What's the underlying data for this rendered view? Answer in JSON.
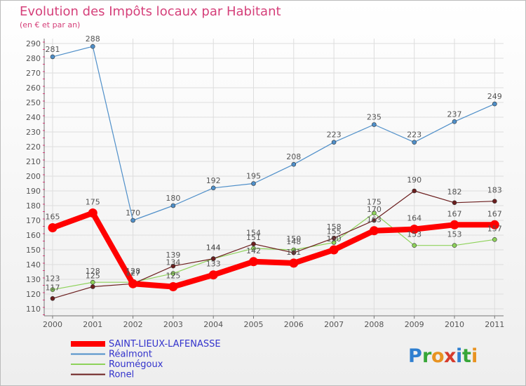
{
  "chart_data": {
    "type": "line",
    "title": "Evolution des Impôts locaux par Habitant",
    "subtitle": "(en € et par an)",
    "categories": [
      "2000",
      "2001",
      "2002",
      "2003",
      "2004",
      "2005",
      "2006",
      "2007",
      "2008",
      "2009",
      "2010",
      "2011"
    ],
    "ylim": [
      110,
      290
    ],
    "yticks": [
      110,
      120,
      130,
      140,
      150,
      160,
      170,
      180,
      190,
      200,
      210,
      220,
      230,
      240,
      250,
      260,
      270,
      280,
      290
    ],
    "grid": true,
    "legend_position": "bottom-left",
    "series": [
      {
        "name": "Réalmont",
        "color": "#4f8fc9",
        "values": [
          281,
          288,
          170,
          180,
          192,
          195,
          208,
          223,
          235,
          223,
          237,
          249
        ]
      },
      {
        "name": "Roumégoux",
        "color": "#8ed25a",
        "values": [
          123,
          128,
          128,
          134,
          144,
          151,
          150,
          155,
          175,
          153,
          153,
          157
        ]
      },
      {
        "name": "Ronel",
        "color": "#6b1e1e",
        "values": [
          117,
          125,
          127,
          139,
          144,
          154,
          148,
          158,
          170,
          190,
          182,
          183
        ]
      },
      {
        "name": "SAINT-LIEUX-LAFENASSE",
        "color": "#ff0000",
        "values": [
          165,
          175,
          127,
          125,
          133,
          142,
          141,
          150,
          163,
          164,
          167,
          167
        ]
      }
    ]
  },
  "colors": {
    "title": "#d5407a",
    "axis": "#555555",
    "grid": "#dddddd",
    "legend_text": "#3333cc",
    "background_top": "#ffffff",
    "background_bottom": "#eeeeee"
  },
  "logo_text": "Proxiti"
}
